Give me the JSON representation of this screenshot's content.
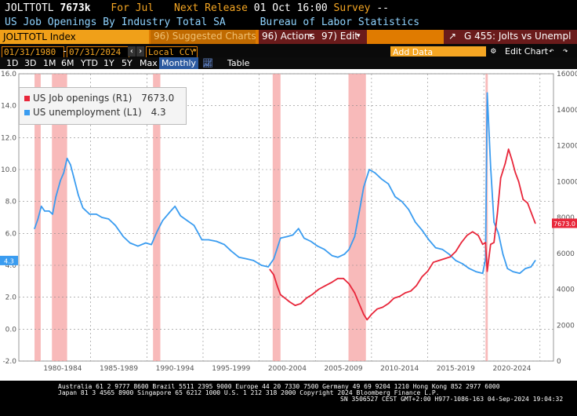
{
  "header": {
    "ticker": "JOLTTOTL",
    "last_value": "7673k",
    "period": "For Jul",
    "next_release_label": "Next Release",
    "next_release": "01 Oct 16:00",
    "survey_label": "Survey",
    "survey_value": "--",
    "description": "US Job Openings By Industry Total SA",
    "source": "Bureau of Labor Statistics"
  },
  "command_bar": {
    "security": "JOLTTOTL Index",
    "suggested_label": "96) Suggested Charts",
    "actions_label": "96) Actions",
    "edit_label": "97) Edit",
    "chart_title": "G 455: Jolts vs Unempl"
  },
  "range": {
    "start": "01/31/1980",
    "end": "07/31/2024",
    "currency": "Local CCY",
    "add_data_placeholder": "Add Data",
    "edit_chart_label": "Edit Chart"
  },
  "toolbar": {
    "periods": [
      "1D",
      "3D",
      "1M",
      "6M",
      "YTD",
      "1Y",
      "5Y",
      "Max"
    ],
    "frequency": "Monthly",
    "table_label": "Table"
  },
  "legend": {
    "series1": {
      "label": "US Job openings (R1)",
      "value": "7673.0",
      "color": "#e8263a"
    },
    "series2": {
      "label": "US unemployment (L1)",
      "value": "4.3",
      "color": "#3a9cf0"
    }
  },
  "axis_labels": {
    "left_badge": "4.3",
    "right_badge": "7673.0"
  },
  "footer": {
    "line1": "Australia 61 2 9777 8600  Brazil 5511 2395 9000  Europe 44 20 7330 7500  Germany 49 69 9204 1210  Hong Kong 852 2977 6000",
    "line2": "Japan 81 3 4565 8900        Singapore 65 6212 1000        U.S. 1 212 318 2000              Copyright 2024 Bloomberg Finance L.P.",
    "line3": "SN 3506527 CEST GMT+2:00 H977-1086-163 04-Sep-2024 19:04:32"
  },
  "chart_data": {
    "type": "line",
    "title": "",
    "xlabel": "",
    "ylabel": "",
    "left_axis": {
      "ylim": [
        -2.0,
        16.0
      ],
      "ticks": [
        "16.0",
        "14.0",
        "12.0",
        "10.0",
        "8.0",
        "6.0",
        "4.0",
        "2.0",
        "0.0",
        "-2.0"
      ]
    },
    "right_axis": {
      "ylim": [
        0,
        16000
      ],
      "ticks": [
        "16000",
        "14000",
        "12000",
        "10000",
        "8000",
        "6000",
        "4000",
        "2000",
        "0"
      ]
    },
    "x_ticks": [
      "1980-1984",
      "1985-1989",
      "1990-1994",
      "1995-1999",
      "2000-2004",
      "2005-2009",
      "2010-2014",
      "2015-2019",
      "2020-2024"
    ],
    "recessions": [
      [
        1980.0,
        1980.55
      ],
      [
        1981.55,
        1982.9
      ],
      [
        1990.55,
        1991.2
      ],
      [
        2001.2,
        2001.9
      ],
      [
        2007.95,
        2009.5
      ],
      [
        2020.15,
        2020.35
      ]
    ],
    "series": [
      {
        "name": "US unemployment",
        "axis": "left",
        "color": "#3a9cf0",
        "points": [
          [
            1980.0,
            6.3
          ],
          [
            1980.3,
            6.9
          ],
          [
            1980.6,
            7.7
          ],
          [
            1980.9,
            7.4
          ],
          [
            1981.3,
            7.4
          ],
          [
            1981.6,
            7.2
          ],
          [
            1981.9,
            8.3
          ],
          [
            1982.3,
            9.3
          ],
          [
            1982.6,
            9.8
          ],
          [
            1982.9,
            10.7
          ],
          [
            1983.2,
            10.3
          ],
          [
            1983.5,
            9.5
          ],
          [
            1983.9,
            8.4
          ],
          [
            1984.3,
            7.6
          ],
          [
            1984.9,
            7.2
          ],
          [
            1985.5,
            7.2
          ],
          [
            1986.0,
            7.0
          ],
          [
            1986.6,
            6.9
          ],
          [
            1987.2,
            6.5
          ],
          [
            1987.9,
            5.8
          ],
          [
            1988.5,
            5.4
          ],
          [
            1989.2,
            5.2
          ],
          [
            1989.9,
            5.4
          ],
          [
            1990.4,
            5.3
          ],
          [
            1990.9,
            6.1
          ],
          [
            1991.4,
            6.8
          ],
          [
            1992.0,
            7.3
          ],
          [
            1992.5,
            7.7
          ],
          [
            1993.0,
            7.1
          ],
          [
            1993.6,
            6.8
          ],
          [
            1994.2,
            6.5
          ],
          [
            1994.9,
            5.6
          ],
          [
            1995.5,
            5.6
          ],
          [
            1996.2,
            5.5
          ],
          [
            1996.9,
            5.3
          ],
          [
            1997.5,
            4.9
          ],
          [
            1998.2,
            4.5
          ],
          [
            1998.9,
            4.4
          ],
          [
            1999.5,
            4.3
          ],
          [
            2000.2,
            4.0
          ],
          [
            2000.8,
            3.9
          ],
          [
            2001.3,
            4.4
          ],
          [
            2001.9,
            5.7
          ],
          [
            2002.5,
            5.8
          ],
          [
            2003.0,
            5.9
          ],
          [
            2003.5,
            6.3
          ],
          [
            2004.0,
            5.7
          ],
          [
            2004.6,
            5.5
          ],
          [
            2005.2,
            5.2
          ],
          [
            2005.8,
            5.0
          ],
          [
            2006.5,
            4.6
          ],
          [
            2007.0,
            4.5
          ],
          [
            2007.6,
            4.7
          ],
          [
            2008.0,
            5.0
          ],
          [
            2008.5,
            5.8
          ],
          [
            2008.9,
            7.3
          ],
          [
            2009.3,
            8.9
          ],
          [
            2009.8,
            10.0
          ],
          [
            2010.3,
            9.8
          ],
          [
            2010.9,
            9.4
          ],
          [
            2011.5,
            9.1
          ],
          [
            2012.1,
            8.3
          ],
          [
            2012.7,
            8.0
          ],
          [
            2013.3,
            7.5
          ],
          [
            2013.9,
            6.7
          ],
          [
            2014.5,
            6.2
          ],
          [
            2015.1,
            5.6
          ],
          [
            2015.7,
            5.1
          ],
          [
            2016.3,
            5.0
          ],
          [
            2016.9,
            4.7
          ],
          [
            2017.5,
            4.3
          ],
          [
            2018.1,
            4.1
          ],
          [
            2018.7,
            3.8
          ],
          [
            2019.3,
            3.6
          ],
          [
            2019.9,
            3.5
          ],
          [
            2020.15,
            4.4
          ],
          [
            2020.3,
            14.8
          ],
          [
            2020.6,
            10.2
          ],
          [
            2020.9,
            6.7
          ],
          [
            2021.3,
            6.0
          ],
          [
            2021.7,
            4.7
          ],
          [
            2022.1,
            3.8
          ],
          [
            2022.6,
            3.6
          ],
          [
            2023.2,
            3.5
          ],
          [
            2023.7,
            3.8
          ],
          [
            2024.2,
            3.9
          ],
          [
            2024.58,
            4.3
          ]
        ]
      },
      {
        "name": "US Job openings",
        "axis": "right",
        "color": "#e8263a",
        "points": [
          [
            2000.95,
            5100
          ],
          [
            2001.3,
            4800
          ],
          [
            2001.6,
            4200
          ],
          [
            2001.9,
            3700
          ],
          [
            2002.3,
            3500
          ],
          [
            2002.7,
            3300
          ],
          [
            2003.2,
            3100
          ],
          [
            2003.7,
            3200
          ],
          [
            2004.2,
            3500
          ],
          [
            2004.7,
            3700
          ],
          [
            2005.3,
            4000
          ],
          [
            2005.9,
            4200
          ],
          [
            2006.5,
            4400
          ],
          [
            2007.0,
            4600
          ],
          [
            2007.5,
            4600
          ],
          [
            2008.0,
            4300
          ],
          [
            2008.5,
            3800
          ],
          [
            2008.9,
            3200
          ],
          [
            2009.3,
            2600
          ],
          [
            2009.6,
            2300
          ],
          [
            2010.0,
            2600
          ],
          [
            2010.5,
            2900
          ],
          [
            2011.0,
            3000
          ],
          [
            2011.5,
            3200
          ],
          [
            2012.0,
            3500
          ],
          [
            2012.5,
            3600
          ],
          [
            2013.0,
            3800
          ],
          [
            2013.5,
            3900
          ],
          [
            2014.0,
            4200
          ],
          [
            2014.5,
            4700
          ],
          [
            2015.0,
            5000
          ],
          [
            2015.5,
            5500
          ],
          [
            2016.0,
            5600
          ],
          [
            2016.5,
            5700
          ],
          [
            2017.0,
            5800
          ],
          [
            2017.5,
            6100
          ],
          [
            2018.0,
            6600
          ],
          [
            2018.5,
            7000
          ],
          [
            2019.0,
            7200
          ],
          [
            2019.5,
            7000
          ],
          [
            2019.9,
            6500
          ],
          [
            2020.15,
            6600
          ],
          [
            2020.3,
            5000
          ],
          [
            2020.6,
            6500
          ],
          [
            2020.9,
            6600
          ],
          [
            2021.2,
            8200
          ],
          [
            2021.5,
            10200
          ],
          [
            2021.9,
            11000
          ],
          [
            2022.2,
            11800
          ],
          [
            2022.5,
            11200
          ],
          [
            2022.8,
            10500
          ],
          [
            2023.1,
            10000
          ],
          [
            2023.5,
            9000
          ],
          [
            2023.9,
            8800
          ],
          [
            2024.2,
            8300
          ],
          [
            2024.58,
            7673
          ]
        ]
      }
    ]
  }
}
